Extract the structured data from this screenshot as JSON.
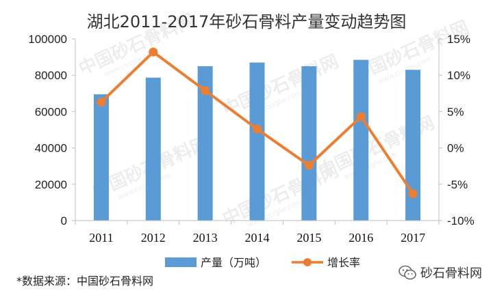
{
  "chart_data": {
    "type": "bar",
    "title": "湖北2011-2017年砂石骨料产量变动趋势图",
    "categories": [
      "2011",
      "2012",
      "2013",
      "2014",
      "2015",
      "2016",
      "2017"
    ],
    "series": [
      {
        "name": "产量（万吨）",
        "type": "bar",
        "axis": "left",
        "values": [
          69500,
          78700,
          85000,
          87000,
          85000,
          88500,
          83000
        ],
        "color": "#5b9bd5"
      },
      {
        "name": "增长率",
        "type": "line",
        "axis": "right",
        "values": [
          6.3,
          13.2,
          7.9,
          2.6,
          -2.4,
          4.3,
          -6.3
        ],
        "color": "#ed7d31"
      }
    ],
    "y_left": {
      "min": 0,
      "max": 100000,
      "ticks": [
        "0",
        "20000",
        "40000",
        "60000",
        "80000",
        "100000"
      ]
    },
    "y_right": {
      "min": -10,
      "max": 15,
      "ticks": [
        "-10%",
        "-5%",
        "0%",
        "5%",
        "10%",
        "15%"
      ]
    },
    "legend_position": "bottom",
    "grid": false
  },
  "source_note": "*数据来源：中国砂石骨料网",
  "watermark": {
    "text": "中国砂石骨料网",
    "url": "www.cssglw.com"
  },
  "brand": {
    "label": "砂石骨料网",
    "icon": "wechat-icon"
  }
}
